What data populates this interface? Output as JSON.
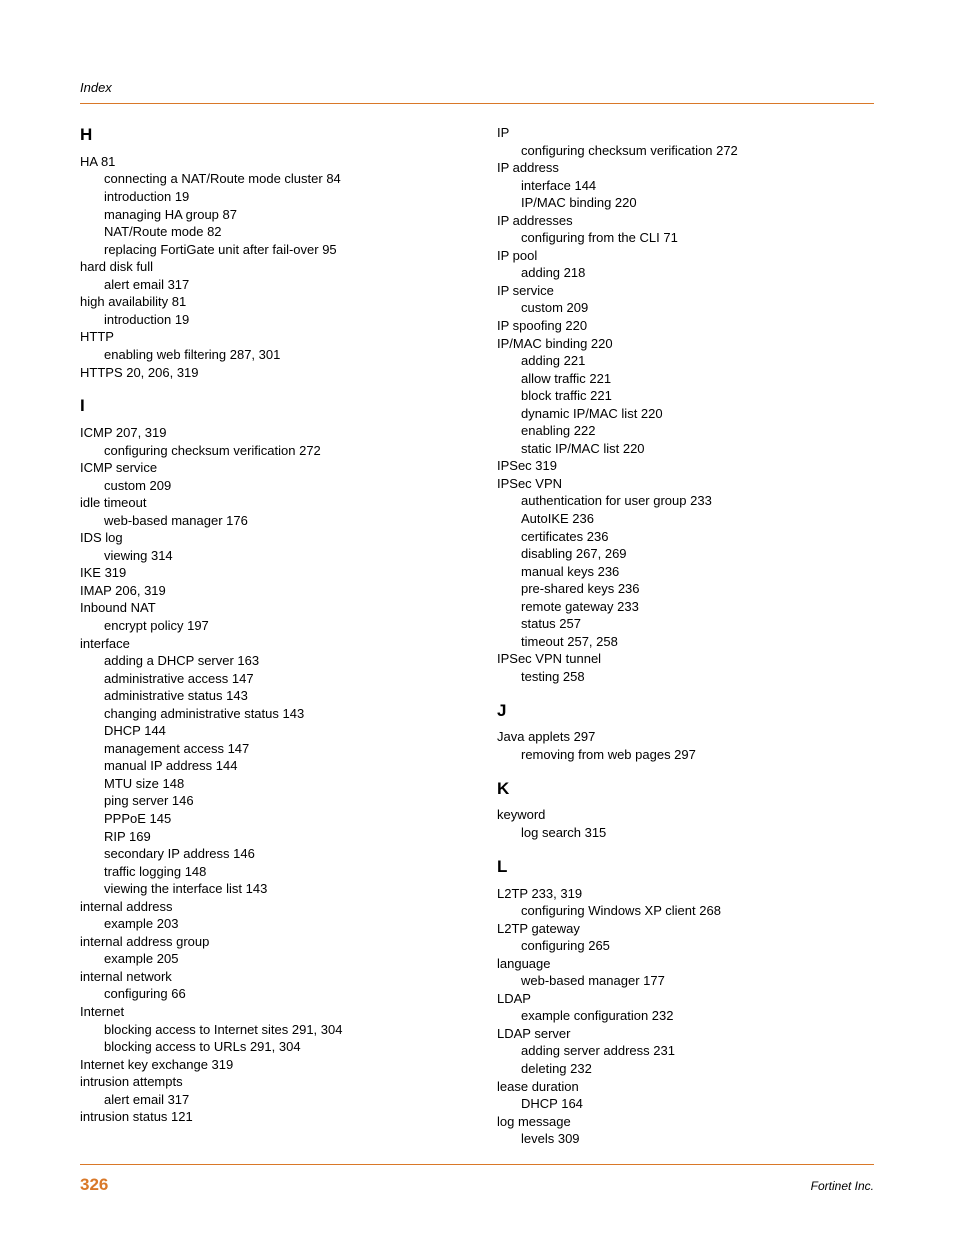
{
  "header": {
    "label": "Index"
  },
  "footer": {
    "page": "326",
    "company": "Fortinet Inc."
  },
  "colors": {
    "accent": "#d97828",
    "text": "#000000",
    "bg": "#ffffff"
  },
  "left": {
    "H": {
      "letter": "H",
      "items": [
        {
          "t": "HA 81",
          "s": [
            "connecting a NAT/Route mode cluster 84",
            "introduction 19",
            "managing HA group 87",
            "NAT/Route mode 82",
            "replacing FortiGate unit after fail-over 95"
          ]
        },
        {
          "t": "hard disk full",
          "s": [
            "alert email 317"
          ]
        },
        {
          "t": "high availability 81",
          "s": [
            "introduction 19"
          ]
        },
        {
          "t": "HTTP",
          "s": [
            "enabling web filtering 287, 301"
          ]
        },
        {
          "t": "HTTPS 20, 206, 319",
          "s": []
        }
      ]
    },
    "I": {
      "letter": "I",
      "items": [
        {
          "t": "ICMP 207, 319",
          "s": [
            "configuring checksum verification 272"
          ]
        },
        {
          "t": "ICMP service",
          "s": [
            "custom 209"
          ]
        },
        {
          "t": "idle timeout",
          "s": [
            "web-based manager 176"
          ]
        },
        {
          "t": "IDS log",
          "s": [
            "viewing 314"
          ]
        },
        {
          "t": "IKE 319",
          "s": []
        },
        {
          "t": "IMAP 206, 319",
          "s": []
        },
        {
          "t": "Inbound NAT",
          "s": [
            "encrypt policy 197"
          ]
        },
        {
          "t": "interface",
          "s": [
            "adding a DHCP server 163",
            "administrative access 147",
            "administrative status 143",
            "changing administrative status 143",
            "DHCP 144",
            "management access 147",
            "manual IP address 144",
            "MTU size 148",
            "ping server 146",
            "PPPoE 145",
            "RIP 169",
            "secondary IP address 146",
            "traffic logging 148",
            "viewing the interface list 143"
          ]
        },
        {
          "t": "internal address",
          "s": [
            "example 203"
          ]
        },
        {
          "t": "internal address group",
          "s": [
            "example 205"
          ]
        },
        {
          "t": "internal network",
          "s": [
            "configuring 66"
          ]
        },
        {
          "t": "Internet",
          "s": [
            "blocking access to Internet sites 291, 304",
            "blocking access to URLs 291, 304"
          ]
        },
        {
          "t": "Internet key exchange 319",
          "s": []
        },
        {
          "t": "intrusion attempts",
          "s": [
            "alert email 317"
          ]
        },
        {
          "t": "intrusion status 121",
          "s": []
        }
      ]
    }
  },
  "right": {
    "IP": {
      "items": [
        {
          "t": "IP",
          "s": [
            "configuring checksum verification 272"
          ]
        },
        {
          "t": "IP address",
          "s": [
            "interface 144",
            "IP/MAC binding 220"
          ]
        },
        {
          "t": "IP addresses",
          "s": [
            "configuring from the CLI 71"
          ]
        },
        {
          "t": "IP pool",
          "s": [
            "adding 218"
          ]
        },
        {
          "t": "IP service",
          "s": [
            "custom 209"
          ]
        },
        {
          "t": "IP spoofing 220",
          "s": []
        },
        {
          "t": "IP/MAC binding 220",
          "s": [
            "adding 221",
            "allow traffic 221",
            "block traffic 221",
            "dynamic IP/MAC list 220",
            "enabling 222",
            "static IP/MAC list 220"
          ]
        },
        {
          "t": "IPSec 319",
          "s": []
        },
        {
          "t": "IPSec VPN",
          "s": [
            "authentication for user group 233",
            "AutoIKE 236",
            "certificates 236",
            "disabling 267, 269",
            "manual keys 236",
            "pre-shared keys 236",
            "remote gateway 233",
            "status 257",
            "timeout 257, 258"
          ]
        },
        {
          "t": "IPSec VPN tunnel",
          "s": [
            "testing 258"
          ]
        }
      ]
    },
    "J": {
      "letter": "J",
      "items": [
        {
          "t": "Java applets 297",
          "s": [
            "removing from web pages 297"
          ]
        }
      ]
    },
    "K": {
      "letter": "K",
      "items": [
        {
          "t": "keyword",
          "s": [
            "log search 315"
          ]
        }
      ]
    },
    "L": {
      "letter": "L",
      "items": [
        {
          "t": "L2TP 233, 319",
          "s": [
            "configuring Windows XP client 268"
          ]
        },
        {
          "t": "L2TP gateway",
          "s": [
            "configuring 265"
          ]
        },
        {
          "t": "language",
          "s": [
            "web-based manager 177"
          ]
        },
        {
          "t": "LDAP",
          "s": [
            "example configuration 232"
          ]
        },
        {
          "t": "LDAP server",
          "s": [
            "adding server address 231",
            "deleting 232"
          ]
        },
        {
          "t": "lease duration",
          "s": [
            "DHCP 164"
          ]
        },
        {
          "t": "log message",
          "s": [
            "levels 309"
          ]
        }
      ]
    }
  }
}
